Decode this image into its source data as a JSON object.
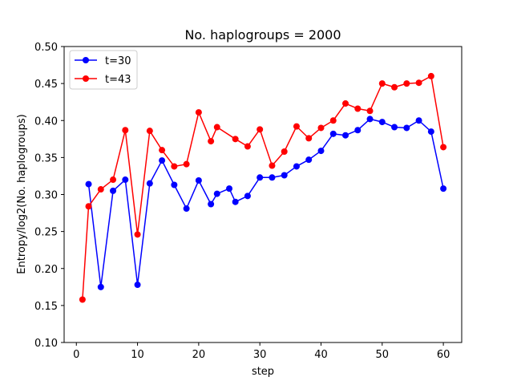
{
  "chart_data": {
    "type": "line",
    "title": "No. haplogroups = 2000",
    "xlabel": "step",
    "ylabel": "Entropy/log2(No. haplogroups)",
    "xlim": [
      -2,
      63
    ],
    "ylim": [
      0.1,
      0.5
    ],
    "x_ticks": [
      0,
      10,
      20,
      30,
      40,
      50,
      60
    ],
    "y_ticks": [
      0.1,
      0.15,
      0.2,
      0.25,
      0.3,
      0.35,
      0.4,
      0.45,
      0.5
    ],
    "y_tick_labels": [
      "0.10",
      "0.15",
      "0.20",
      "0.25",
      "0.30",
      "0.35",
      "0.40",
      "0.45",
      "0.50"
    ],
    "grid": false,
    "legend_position": "top-left",
    "series": [
      {
        "name": "t=30",
        "color": "#0000ff",
        "x": [
          2,
          4,
          6,
          8,
          10,
          12,
          14,
          16,
          18,
          20,
          22,
          23,
          25,
          26,
          28,
          30,
          32,
          34,
          36,
          38,
          40,
          42,
          44,
          46,
          48,
          50,
          52,
          54,
          56,
          58,
          60
        ],
        "y": [
          0.314,
          0.175,
          0.305,
          0.32,
          0.178,
          0.315,
          0.346,
          0.313,
          0.281,
          0.319,
          0.287,
          0.301,
          0.308,
          0.29,
          0.298,
          0.323,
          0.323,
          0.326,
          0.338,
          0.347,
          0.359,
          0.382,
          0.38,
          0.387,
          0.402,
          0.398,
          0.391,
          0.39,
          0.4,
          0.385,
          0.308
        ]
      },
      {
        "name": "t=43",
        "color": "#ff0000",
        "x": [
          1,
          2,
          4,
          6,
          8,
          10,
          12,
          14,
          16,
          18,
          20,
          22,
          23,
          26,
          28,
          30,
          32,
          34,
          36,
          38,
          40,
          42,
          44,
          46,
          48,
          50,
          52,
          54,
          56,
          58,
          60
        ],
        "y": [
          0.158,
          0.284,
          0.307,
          0.32,
          0.387,
          0.246,
          0.386,
          0.36,
          0.338,
          0.341,
          0.411,
          0.372,
          0.391,
          0.375,
          0.365,
          0.388,
          0.339,
          0.358,
          0.392,
          0.376,
          0.39,
          0.4,
          0.423,
          0.416,
          0.413,
          0.45,
          0.445,
          0.45,
          0.451,
          0.46,
          0.364
        ]
      }
    ]
  }
}
